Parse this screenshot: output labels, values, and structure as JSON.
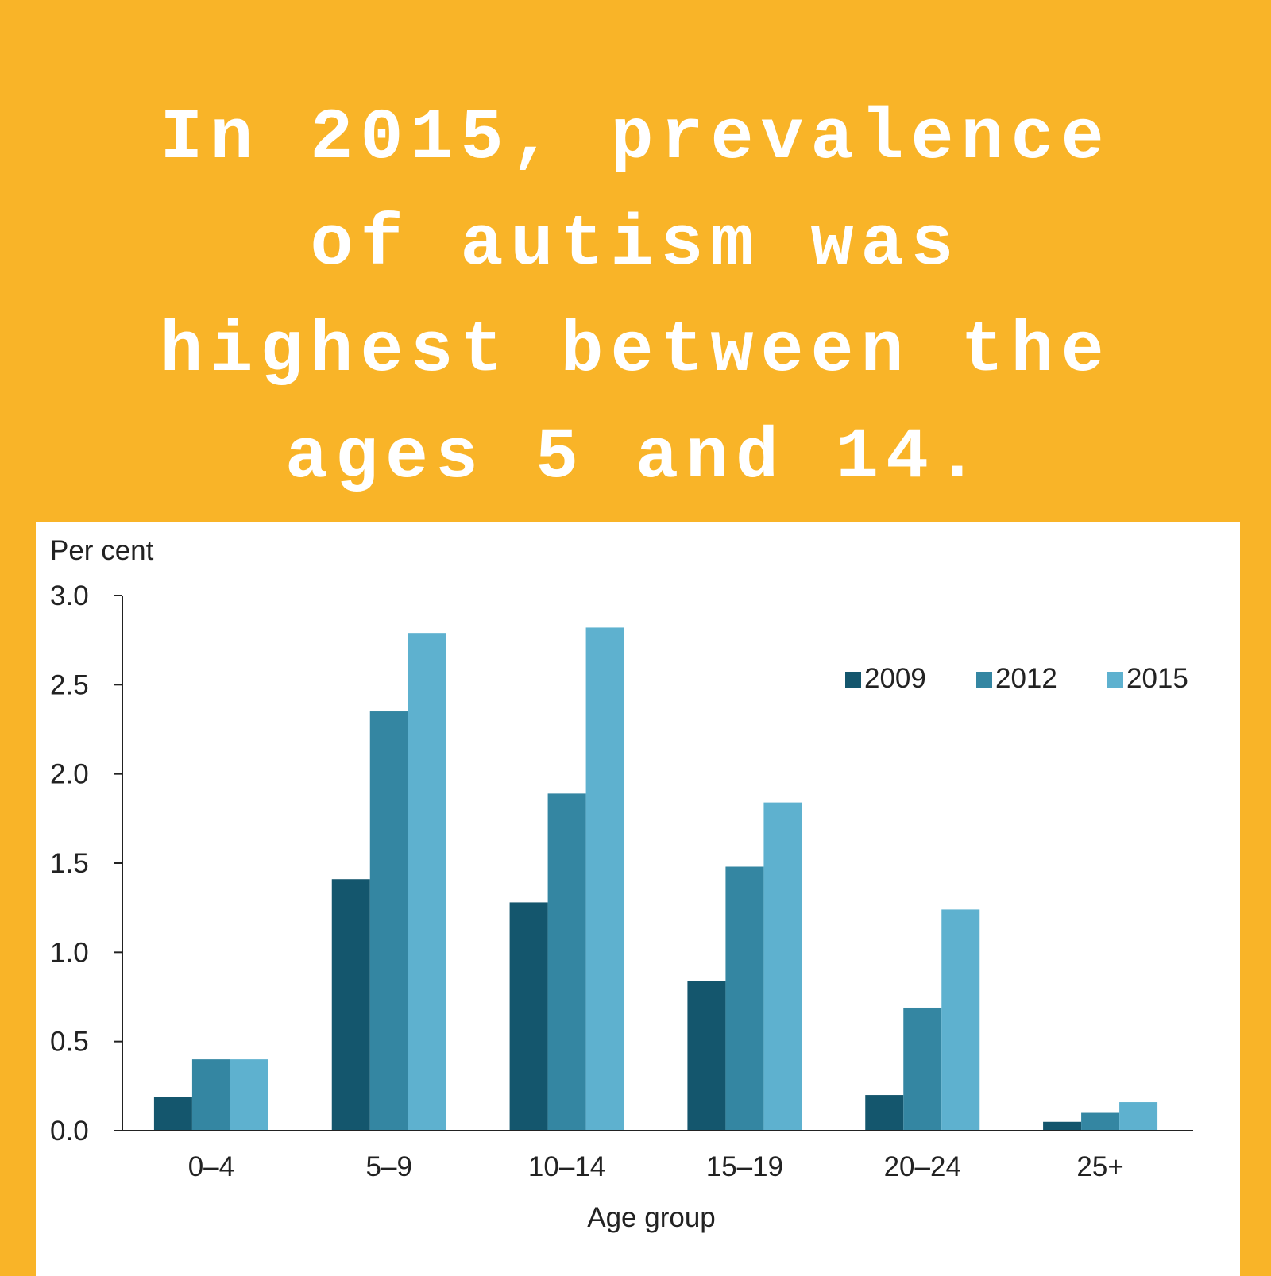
{
  "headline": {
    "lines": [
      "In 2015, prevalence",
      "of autism was",
      "highest between the",
      "ages 5 and 14."
    ]
  },
  "colors": {
    "background": "#F9B428",
    "series_2009": "#14566D",
    "series_2012": "#3486A2",
    "series_2015": "#5EB1CF"
  },
  "chart_data": {
    "type": "bar",
    "categories": [
      "0–4",
      "5–9",
      "10–14",
      "15–19",
      "20–24",
      "25+"
    ],
    "series": [
      {
        "name": "2009",
        "values": [
          0.19,
          1.41,
          1.28,
          0.84,
          0.2,
          0.05
        ]
      },
      {
        "name": "2012",
        "values": [
          0.4,
          2.35,
          1.89,
          1.48,
          0.69,
          0.1
        ]
      },
      {
        "name": "2015",
        "values": [
          0.4,
          2.79,
          2.82,
          1.84,
          1.24,
          0.16
        ]
      }
    ],
    "ylabel": "Per cent",
    "xlabel": "Age group",
    "ylim": [
      0,
      3.0
    ],
    "yticks": [
      "0.0",
      "0.5",
      "1.0",
      "1.5",
      "2.0",
      "2.5",
      "3.0"
    ],
    "grid": false,
    "legend_position": "top-right"
  }
}
